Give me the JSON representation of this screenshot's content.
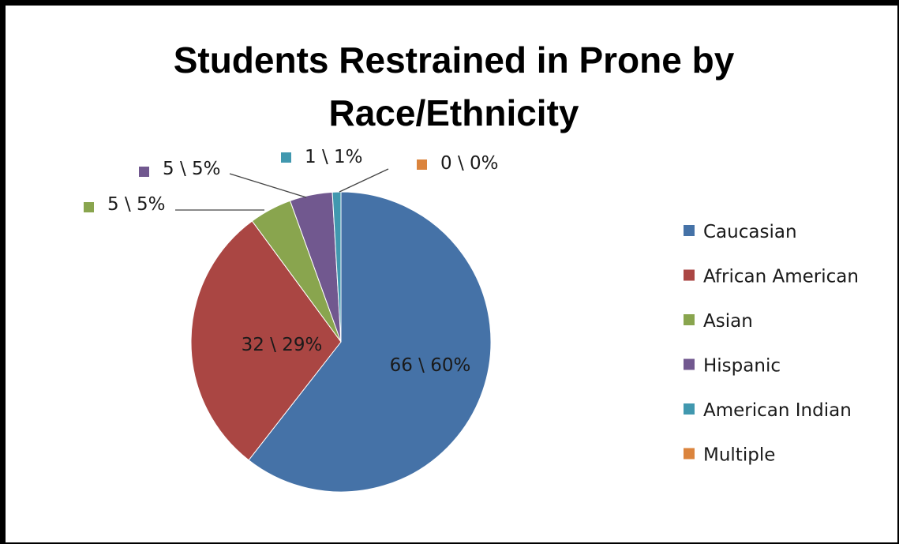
{
  "chart_data": {
    "type": "pie",
    "title_lines": [
      "Students Restrained in Prone by",
      "Race/Ethnicity"
    ],
    "categories": [
      "Caucasian",
      "African American",
      "Asian",
      "Hispanic",
      "American Indian",
      "Multiple"
    ],
    "values": [
      66,
      32,
      5,
      5,
      1,
      0
    ],
    "percents": [
      60,
      29,
      5,
      5,
      1,
      0
    ],
    "labels": [
      "66 \\ 60%",
      "32 \\ 29%",
      "5 \\ 5%",
      "5 \\ 5%",
      "1 \\ 1%",
      "0 \\ 0%"
    ],
    "colors": [
      "#4572A7",
      "#AA4643",
      "#89A54E",
      "#71588F",
      "#4198AF",
      "#DB843D"
    ],
    "legend_position": "right",
    "start_angle": "top, clockwise"
  }
}
